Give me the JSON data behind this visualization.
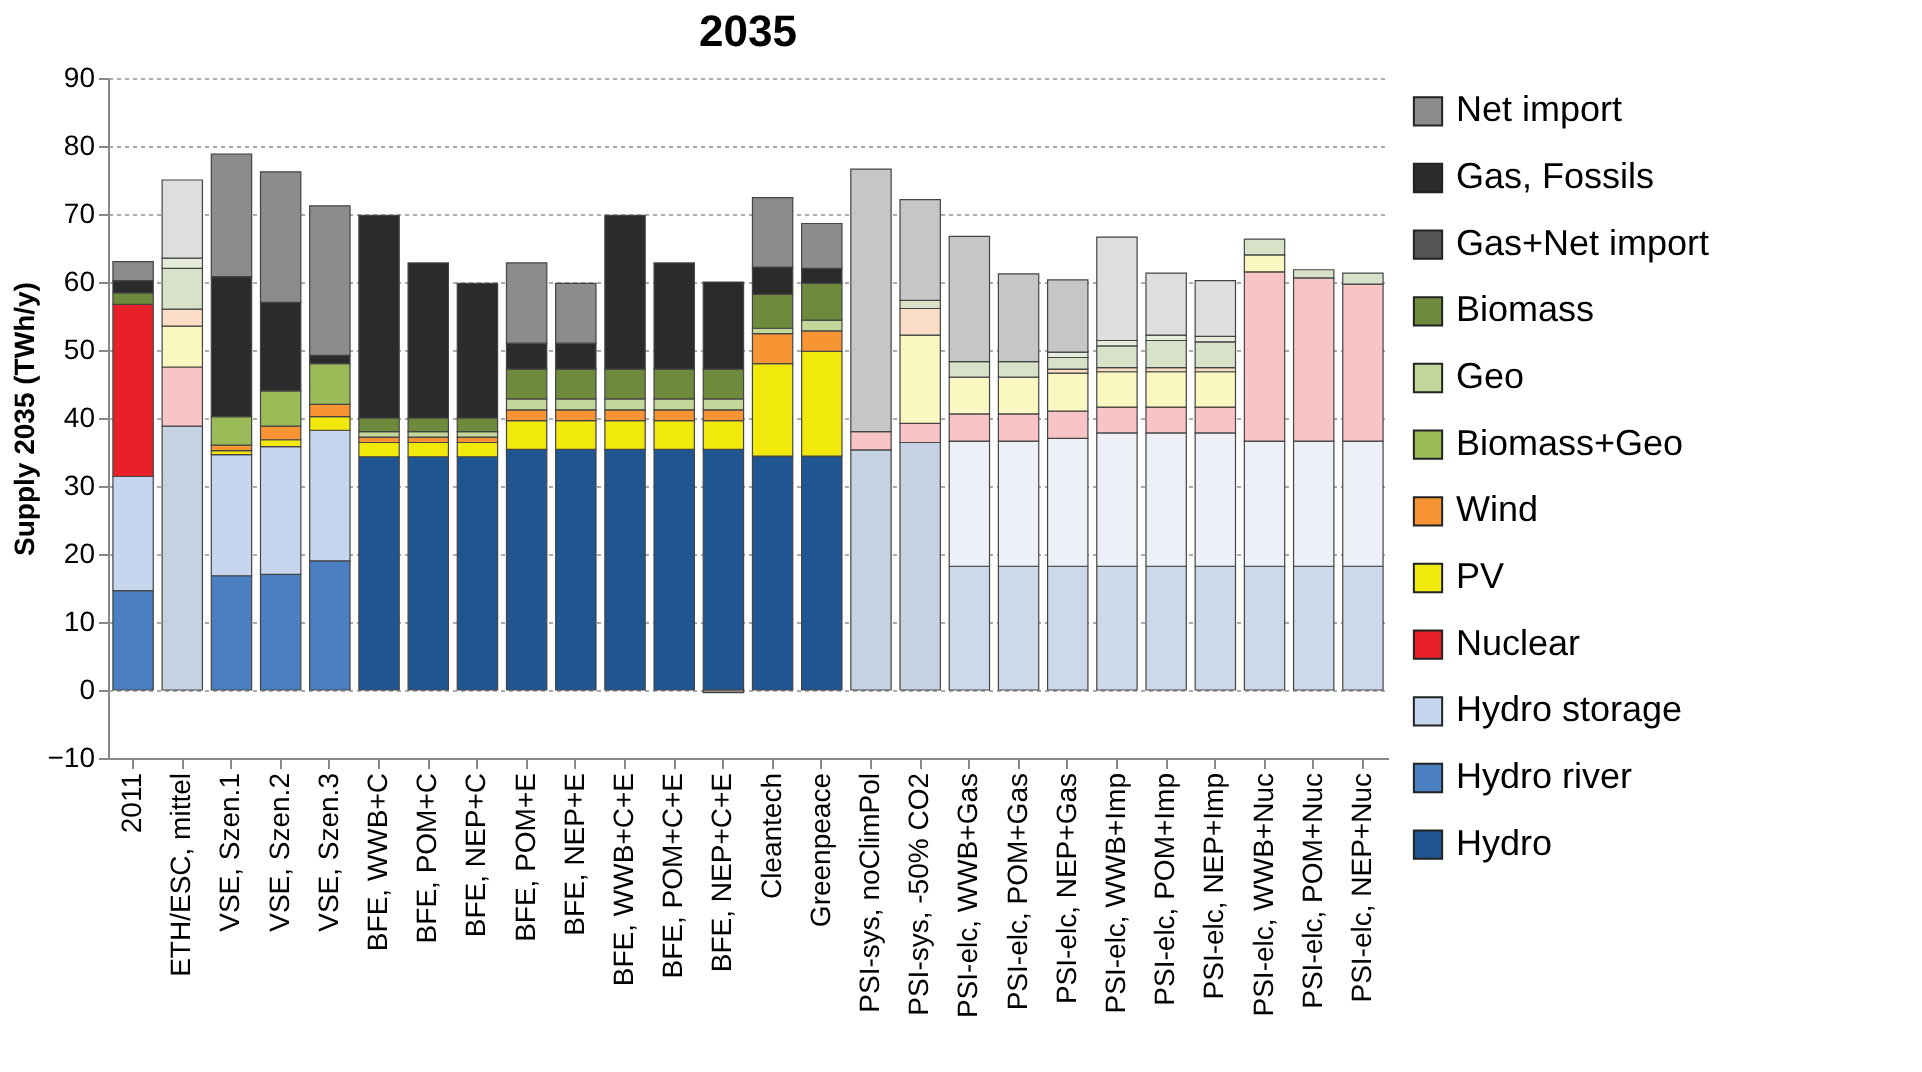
{
  "chart_data": {
    "type": "bar",
    "stacked": true,
    "title": "2035",
    "ylabel": "Supply 2035 (TWh/y)",
    "categories": [
      "2011",
      "ETH/ESC, mittel",
      "VSE, Szen.1",
      "VSE, Szen.2",
      "VSE, Szen.3",
      "BFE, WWB+C",
      "BFE, POM+C",
      "BFE, NEP+C",
      "BFE, POM+E",
      "BFE, NEP+E",
      "BFE, WWB+C+E",
      "BFE, POM+C+E",
      "BFE, NEP+C+E",
      "Cleantech",
      "Greenpeace",
      "PSI-sys, noClimPol",
      "PSI-sys, -50% CO2",
      "PSI-elc, WWB+Gas",
      "PSI-elc, POM+Gas",
      "PSI-elc, NEP+Gas",
      "PSI-elc, WWB+Imp",
      "PSI-elc, POM+Imp",
      "PSI-elc, NEP+Imp",
      "PSI-elc, WWB+Nuc",
      "PSI-elc, POM+Nuc",
      "PSI-elc, NEP+Nuc"
    ],
    "ylim": [
      -10,
      90
    ],
    "yticks": [
      -10,
      0,
      10,
      20,
      30,
      40,
      50,
      60,
      70,
      80,
      90
    ],
    "grid": "y",
    "legend": "right",
    "series": [
      {
        "name": "Hydro",
        "color": "#1f5591",
        "values": [
          null,
          38.8,
          null,
          null,
          null,
          34.3,
          34.3,
          34.3,
          35.4,
          35.4,
          35.4,
          35.4,
          35.4,
          34.4,
          34.4,
          35.3,
          36.4,
          null,
          null,
          null,
          null,
          null,
          null,
          null,
          null,
          null
        ],
        "colors": [
          "#1f5591",
          "#c4d2e2",
          "#1f5591",
          "#1f5591",
          "#1f5591",
          "#1f5591",
          "#1f5591",
          "#1f5591",
          "#1f5591",
          "#1f5591",
          "#1f5591",
          "#1f5591",
          "#1f5591",
          "#1f5591",
          "#1f5591",
          "#c4d2e2",
          "#c4d2e2",
          "#c4d2e2",
          "#c4d2e2",
          "#c4d2e2",
          "#c4d2e2",
          "#c4d2e2",
          "#c4d2e2",
          "#c4d2e2",
          "#c4d2e2",
          "#c4d2e2"
        ]
      },
      {
        "name": "Hydro river",
        "color": "#4a7fc1",
        "values": [
          14.6,
          null,
          16.8,
          17.0,
          19.0,
          null,
          null,
          null,
          null,
          null,
          null,
          null,
          null,
          null,
          null,
          null,
          null,
          18.2,
          18.2,
          18.2,
          18.2,
          18.2,
          18.2,
          18.2,
          18.2,
          18.2
        ],
        "colors": [
          "#4a7fc1",
          "#cbd9ea",
          "#4a7fc1",
          "#4a7fc1",
          "#4a7fc1",
          "#4a7fc1",
          "#4a7fc1",
          "#4a7fc1",
          "#4a7fc1",
          "#4a7fc1",
          "#4a7fc1",
          "#4a7fc1",
          "#4a7fc1",
          "#4a7fc1",
          "#4a7fc1",
          "#cbd9ea",
          "#cbd9ea",
          "#cbd9ea",
          "#cbd9ea",
          "#cbd9ea",
          "#cbd9ea",
          "#cbd9ea",
          "#cbd9ea",
          "#cbd9ea",
          "#cbd9ea",
          "#cbd9ea"
        ]
      },
      {
        "name": "Hydro storage",
        "color": "#c5d6ee",
        "values": [
          16.8,
          null,
          17.8,
          18.8,
          19.2,
          null,
          null,
          null,
          null,
          null,
          null,
          null,
          null,
          null,
          null,
          null,
          null,
          18.4,
          18.4,
          18.8,
          19.6,
          19.6,
          19.6,
          18.4,
          18.4,
          18.4
        ],
        "colors": [
          "#c5d6ee",
          "#edf1f7",
          "#c5d6ee",
          "#c5d6ee",
          "#c5d6ee",
          "#c5d6ee",
          "#c5d6ee",
          "#c5d6ee",
          "#c5d6ee",
          "#c5d6ee",
          "#c5d6ee",
          "#c5d6ee",
          "#c5d6ee",
          "#c5d6ee",
          "#c5d6ee",
          "#edf1f7",
          "#edf1f7",
          "#edf1f7",
          "#edf1f7",
          "#edf1f7",
          "#edf1f7",
          "#edf1f7",
          "#edf1f7",
          "#edf1f7",
          "#edf1f7",
          "#edf1f7"
        ]
      },
      {
        "name": "Nuclear",
        "color": "#e8202a",
        "values": [
          25.3,
          8.7,
          null,
          null,
          null,
          null,
          null,
          null,
          null,
          null,
          null,
          null,
          null,
          null,
          null,
          2.7,
          2.8,
          4.0,
          4.0,
          4.0,
          3.8,
          3.8,
          3.8,
          24.9,
          24.0,
          23.1
        ],
        "colors": [
          "#e8202a",
          "#f8c4c6",
          "#e8202a",
          "#e8202a",
          "#e8202a",
          "#e8202a",
          "#e8202a",
          "#e8202a",
          "#e8202a",
          "#e8202a",
          "#e8202a",
          "#e8202a",
          "#e8202a",
          "#e8202a",
          "#e8202a",
          "#f8c4c6",
          "#f8c4c6",
          "#f8c4c6",
          "#f8c4c6",
          "#f8c4c6",
          "#f8c4c6",
          "#f8c4c6",
          "#f8c4c6",
          "#f8c4c6",
          "#f8c4c6",
          "#f8c4c6"
        ]
      },
      {
        "name": "PV",
        "color": "#f2e90c",
        "values": [
          null,
          6.0,
          0.6,
          1.0,
          2.0,
          2.1,
          2.1,
          2.1,
          4.2,
          4.2,
          4.2,
          4.2,
          4.2,
          13.6,
          15.4,
          null,
          13.0,
          5.4,
          5.4,
          5.6,
          5.2,
          5.2,
          5.2,
          2.5,
          null,
          null
        ],
        "colors": [
          "#f2e90c",
          "#fbf7c0",
          "#f2e90c",
          "#f2e90c",
          "#f2e90c",
          "#f2e90c",
          "#f2e90c",
          "#f2e90c",
          "#f2e90c",
          "#f2e90c",
          "#f2e90c",
          "#f2e90c",
          "#f2e90c",
          "#f2e90c",
          "#f2e90c",
          "#fbf7c0",
          "#fbf7c0",
          "#fbf7c0",
          "#fbf7c0",
          "#fbf7c0",
          "#fbf7c0",
          "#fbf7c0",
          "#fbf7c0",
          "#fbf7c0",
          "#fbf7c0",
          "#fbf7c0"
        ]
      },
      {
        "name": "Wind",
        "color": "#f79433",
        "values": [
          null,
          2.5,
          0.8,
          2.0,
          1.8,
          0.8,
          0.8,
          0.8,
          1.6,
          1.6,
          1.6,
          1.6,
          1.6,
          4.4,
          3.0,
          null,
          3.9,
          null,
          null,
          0.6,
          0.6,
          0.6,
          0.6,
          null,
          null,
          null
        ],
        "colors": [
          "#f79433",
          "#fbdcc4",
          "#f79433",
          "#f79433",
          "#f79433",
          "#f79433",
          "#f79433",
          "#f79433",
          "#f79433",
          "#f79433",
          "#f79433",
          "#f79433",
          "#f79433",
          "#f79433",
          "#f79433",
          "#fbdcc4",
          "#fbdcc4",
          "#fbdcc4",
          "#fbdcc4",
          "#fbdcc4",
          "#fbdcc4",
          "#fbdcc4",
          "#fbdcc4",
          "#fbdcc4",
          "#fbdcc4",
          "#fbdcc4"
        ]
      },
      {
        "name": "Biomass+Geo",
        "color": "#9bbb59",
        "values": [
          null,
          6.0,
          4.2,
          5.2,
          6.0,
          null,
          null,
          null,
          null,
          null,
          null,
          null,
          null,
          null,
          null,
          null,
          1.2,
          2.3,
          2.3,
          1.7,
          3.2,
          4.0,
          3.8,
          2.3,
          1.2,
          1.6
        ],
        "colors": [
          "#9bbb59",
          "#d8e2c8",
          "#9bbb59",
          "#9bbb59",
          "#9bbb59",
          "#9bbb59",
          "#9bbb59",
          "#9bbb59",
          "#9bbb59",
          "#9bbb59",
          "#9bbb59",
          "#9bbb59",
          "#9bbb59",
          "#9bbb59",
          "#9bbb59",
          "#d8e2c8",
          "#d8e2c8",
          "#d8e2c8",
          "#d8e2c8",
          "#d8e2c8",
          "#d8e2c8",
          "#d8e2c8",
          "#d8e2c8",
          "#d8e2c8",
          "#d8e2c8",
          "#d8e2c8"
        ]
      },
      {
        "name": "Geo",
        "color": "#c4d79b",
        "values": [
          null,
          1.5,
          null,
          null,
          null,
          0.8,
          0.8,
          0.8,
          1.6,
          1.6,
          1.6,
          1.6,
          1.6,
          0.8,
          1.6,
          null,
          null,
          null,
          null,
          0.8,
          0.8,
          0.8,
          0.8,
          null,
          null,
          null
        ],
        "colors": [
          "#c4d79b",
          "#e6ecdb",
          "#c4d79b",
          "#c4d79b",
          "#c4d79b",
          "#c4d79b",
          "#c4d79b",
          "#c4d79b",
          "#c4d79b",
          "#c4d79b",
          "#c4d79b",
          "#c4d79b",
          "#c4d79b",
          "#c4d79b",
          "#c4d79b",
          "#e6ecdb",
          "#e6ecdb",
          "#e6ecdb",
          "#e6ecdb",
          "#e6ecdb",
          "#e6ecdb",
          "#e6ecdb",
          "#e6ecdb",
          "#e6ecdb",
          "#e6ecdb",
          "#e6ecdb"
        ]
      },
      {
        "name": "Biomass",
        "color": "#6e8b3d",
        "values": [
          1.7,
          null,
          null,
          null,
          null,
          2.0,
          2.0,
          2.0,
          4.4,
          4.4,
          4.4,
          4.4,
          4.4,
          5.0,
          5.4,
          null,
          null,
          null,
          null,
          null,
          null,
          null,
          null,
          null,
          null,
          null
        ]
      },
      {
        "name": "Gas+Net import",
        "color": "#555555",
        "values": [
          null,
          null,
          null,
          null,
          null,
          null,
          null,
          null,
          null,
          null,
          null,
          null,
          null,
          null,
          null,
          null,
          null,
          null,
          null,
          null,
          null,
          null,
          null,
          null,
          null,
          null
        ]
      },
      {
        "name": "Gas, Fossils",
        "color": "#2b2b2b",
        "values": [
          1.8,
          null,
          20.6,
          13.0,
          1.2,
          29.8,
          22.8,
          19.8,
          3.8,
          3.8,
          22.6,
          15.6,
          12.8,
          4.0,
          2.2,
          38.6,
          14.8,
          18.4,
          12.9,
          10.6,
          null,
          null,
          null,
          null,
          null,
          null
        ],
        "colors": [
          "#2b2b2b",
          "#c6c6c6",
          "#2b2b2b",
          "#2b2b2b",
          "#2b2b2b",
          "#2b2b2b",
          "#2b2b2b",
          "#2b2b2b",
          "#2b2b2b",
          "#2b2b2b",
          "#2b2b2b",
          "#2b2b2b",
          "#2b2b2b",
          "#2b2b2b",
          "#2b2b2b",
          "#c6c6c6",
          "#c6c6c6",
          "#c6c6c6",
          "#c6c6c6",
          "#c6c6c6",
          "#c6c6c6",
          "#c6c6c6",
          "#c6c6c6",
          "#c6c6c6",
          "#c6c6c6",
          "#c6c6c6"
        ]
      },
      {
        "name": "Net import",
        "color": "#8c8c8c",
        "values": [
          2.8,
          11.5,
          18.0,
          19.2,
          22.0,
          null,
          null,
          null,
          11.8,
          8.8,
          null,
          null,
          -0.4,
          10.2,
          6.6,
          null,
          null,
          null,
          null,
          null,
          15.2,
          9.1,
          8.2,
          null,
          null,
          null
        ],
        "colors": [
          "#8c8c8c",
          "#dedede",
          "#8c8c8c",
          "#8c8c8c",
          "#8c8c8c",
          "#8c8c8c",
          "#8c8c8c",
          "#8c8c8c",
          "#8c8c8c",
          "#8c8c8c",
          "#8c8c8c",
          "#8c8c8c",
          "#8c8c8c",
          "#8c8c8c",
          "#8c8c8c",
          "#dedede",
          "#dedede",
          "#dedede",
          "#dedede",
          "#dedede",
          "#dedede",
          "#dedede",
          "#dedede",
          "#dedede",
          "#dedede",
          "#dedede"
        ]
      }
    ]
  }
}
